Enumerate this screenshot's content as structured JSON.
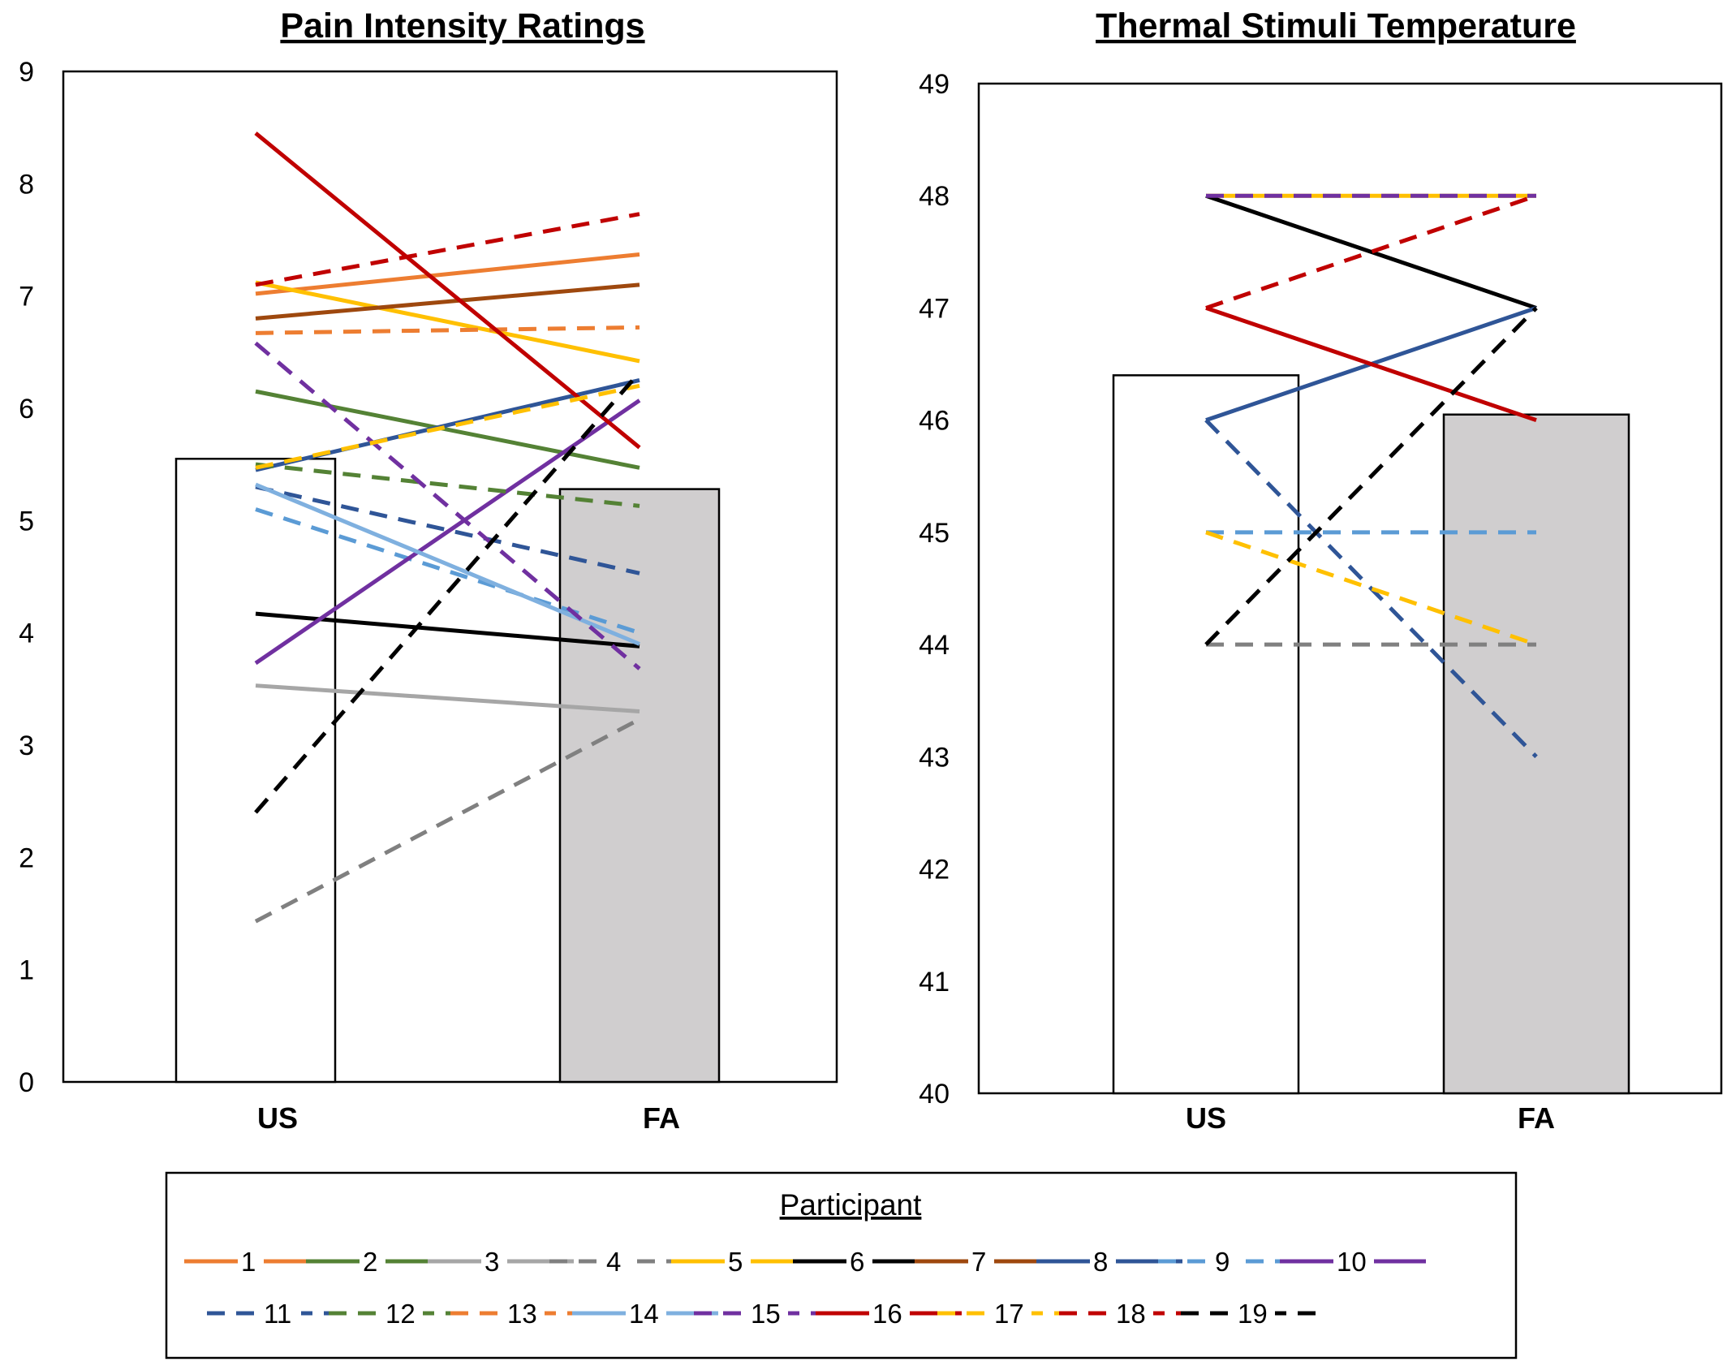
{
  "chart_data": [
    {
      "type": "bar",
      "title": "Pain Intensity Ratings",
      "xlabel": "",
      "ylabel": "",
      "categories": [
        "US",
        "FA"
      ],
      "ylim": [
        0,
        9
      ],
      "yticks": [
        "0",
        "1",
        "2",
        "3",
        "4",
        "5",
        "6",
        "7",
        "8",
        "9"
      ],
      "bars": [
        {
          "category": "US",
          "value": 5.55,
          "fill": "#ffffff"
        },
        {
          "category": "FA",
          "value": 5.28,
          "fill": "#d0cecf"
        }
      ],
      "participant_lines": [
        {
          "participant": "1",
          "US": 7.02,
          "FA": 7.37
        },
        {
          "participant": "2",
          "US": 6.15,
          "FA": 5.47
        },
        {
          "participant": "3",
          "US": 3.53,
          "FA": 3.3
        },
        {
          "participant": "4",
          "US": 1.43,
          "FA": 3.23
        },
        {
          "participant": "5",
          "US": 7.12,
          "FA": 6.42
        },
        {
          "participant": "6",
          "US": 4.17,
          "FA": 3.88
        },
        {
          "participant": "7",
          "US": 6.8,
          "FA": 7.1
        },
        {
          "participant": "8",
          "US": 5.45,
          "FA": 6.25
        },
        {
          "participant": "9",
          "US": 5.1,
          "FA": 4.0
        },
        {
          "participant": "10",
          "US": 3.73,
          "FA": 6.07
        },
        {
          "participant": "11",
          "US": 5.3,
          "FA": 4.53
        },
        {
          "participant": "12",
          "US": 5.5,
          "FA": 5.13
        },
        {
          "participant": "13",
          "US": 6.67,
          "FA": 6.72
        },
        {
          "participant": "14",
          "US": 5.32,
          "FA": 3.9
        },
        {
          "participant": "15",
          "US": 6.58,
          "FA": 3.68
        },
        {
          "participant": "16",
          "US": 8.45,
          "FA": 5.65
        },
        {
          "participant": "17",
          "US": 5.47,
          "FA": 6.2
        },
        {
          "participant": "18",
          "US": 7.1,
          "FA": 7.73
        },
        {
          "participant": "19",
          "US": 2.4,
          "FA": 6.32
        }
      ]
    },
    {
      "type": "bar",
      "title": "Thermal Stimuli Temperature",
      "xlabel": "",
      "ylabel": "",
      "categories": [
        "US",
        "FA"
      ],
      "ylim": [
        40,
        49
      ],
      "yticks": [
        "40",
        "41",
        "42",
        "43",
        "44",
        "45",
        "46",
        "47",
        "48",
        "49"
      ],
      "bars": [
        {
          "category": "US",
          "value": 46.4,
          "fill": "#ffffff"
        },
        {
          "category": "FA",
          "value": 46.05,
          "fill": "#d0cecf"
        }
      ],
      "participant_lines": [
        {
          "participant": "4",
          "US": 44,
          "FA": 44
        },
        {
          "participant": "5",
          "US": 48,
          "FA": 48
        },
        {
          "participant": "6",
          "US": 48,
          "FA": 47
        },
        {
          "participant": "8",
          "US": 46,
          "FA": 47
        },
        {
          "participant": "9",
          "US": 45,
          "FA": 45
        },
        {
          "participant": "11",
          "US": 46,
          "FA": 43
        },
        {
          "participant": "15",
          "US": 48,
          "FA": 48
        },
        {
          "participant": "16",
          "US": 47,
          "FA": 46
        },
        {
          "participant": "17",
          "US": 45,
          "FA": 44
        },
        {
          "participant": "18",
          "US": 47,
          "FA": 48
        },
        {
          "participant": "19",
          "US": 44,
          "FA": 47
        }
      ]
    }
  ],
  "legend": {
    "title": "Participant",
    "entries": [
      {
        "label": "1",
        "color": "#ed7d31",
        "dash": false
      },
      {
        "label": "2",
        "color": "#548235",
        "dash": false
      },
      {
        "label": "3",
        "color": "#a6a6a6",
        "dash": false
      },
      {
        "label": "4",
        "color": "#808080",
        "dash": true
      },
      {
        "label": "5",
        "color": "#ffc000",
        "dash": false
      },
      {
        "label": "6",
        "color": "#000000",
        "dash": false
      },
      {
        "label": "7",
        "color": "#9e480e",
        "dash": false
      },
      {
        "label": "8",
        "color": "#2f5597",
        "dash": false
      },
      {
        "label": "9",
        "color": "#5b9bd5",
        "dash": true
      },
      {
        "label": "10",
        "color": "#7030a0",
        "dash": false
      },
      {
        "label": "11",
        "color": "#2f5597",
        "dash": true
      },
      {
        "label": "12",
        "color": "#548235",
        "dash": true
      },
      {
        "label": "13",
        "color": "#ed7d31",
        "dash": true
      },
      {
        "label": "14",
        "color": "#7fb0df",
        "dash": false
      },
      {
        "label": "15",
        "color": "#7030a0",
        "dash": true
      },
      {
        "label": "16",
        "color": "#c00000",
        "dash": false
      },
      {
        "label": "17",
        "color": "#ffc000",
        "dash": true
      },
      {
        "label": "18",
        "color": "#c00000",
        "dash": true
      },
      {
        "label": "19",
        "color": "#000000",
        "dash": true
      }
    ]
  }
}
